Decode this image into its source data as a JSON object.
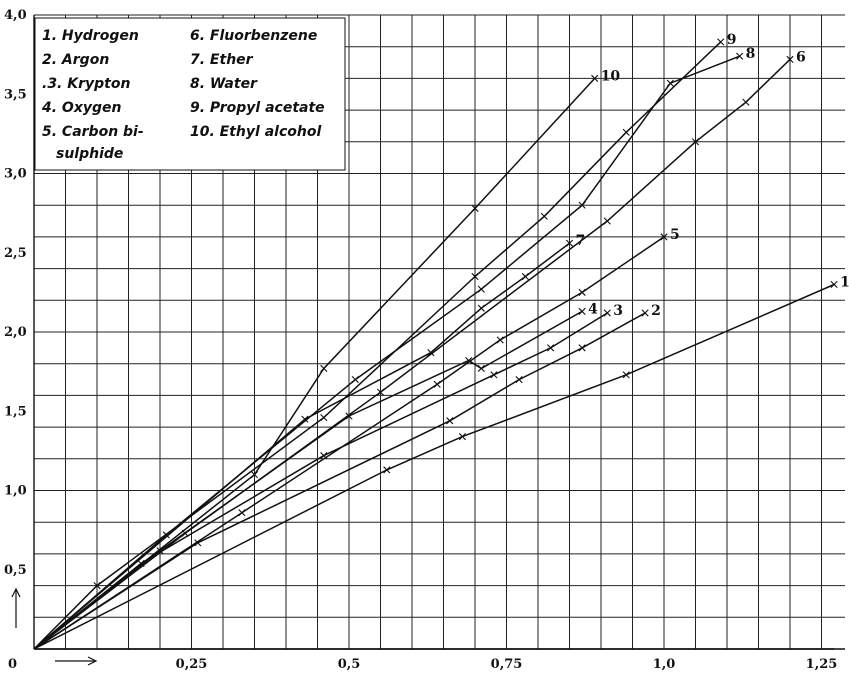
{
  "chart_data": {
    "type": "line",
    "title": "",
    "xlabel": "",
    "ylabel": "",
    "xlim": [
      0,
      1.27
    ],
    "ylim": [
      0,
      4.0
    ],
    "grid": true,
    "legend_position": "top-left",
    "origin_label": "0",
    "x_ticks": [
      {
        "value": 0.25,
        "label": "0,25"
      },
      {
        "value": 0.5,
        "label": "0,5"
      },
      {
        "value": 0.75,
        "label": "0,75"
      },
      {
        "value": 1.0,
        "label": "1,0"
      },
      {
        "value": 1.25,
        "label": "1,25"
      }
    ],
    "y_ticks": [
      {
        "value": 0.5,
        "label": "0,5"
      },
      {
        "value": 1.0,
        "label": "1,0"
      },
      {
        "value": 1.5,
        "label": "1,5"
      },
      {
        "value": 2.0,
        "label": "2,0"
      },
      {
        "value": 2.5,
        "label": "2,5"
      },
      {
        "value": 3.0,
        "label": "3,0"
      },
      {
        "value": 3.5,
        "label": "3,5"
      },
      {
        "value": 4.0,
        "label": "4,0"
      }
    ],
    "legend": [
      {
        "id": "1",
        "label": "1. Hydrogen"
      },
      {
        "id": "2",
        "label": "2. Argon"
      },
      {
        "id": "3",
        "label": ".3. Krypton"
      },
      {
        "id": "4",
        "label": "4. Oxygen"
      },
      {
        "id": "5",
        "label": "5. Carbon bi-",
        "cont": "sulphide"
      },
      {
        "id": "6",
        "label": "6. Fluorbenzene"
      },
      {
        "id": "7",
        "label": "7. Ether"
      },
      {
        "id": "8",
        "label": "8. Water"
      },
      {
        "id": "9",
        "label": "9. Propyl acetate"
      },
      {
        "id": "10",
        "label": "10. Ethyl alcohol"
      }
    ],
    "series": [
      {
        "name": "1",
        "end_label": "1",
        "points": [
          [
            0,
            0
          ],
          [
            0.56,
            1.13
          ],
          [
            0.68,
            1.34
          ],
          [
            0.94,
            1.73
          ],
          [
            1.27,
            2.3
          ]
        ]
      },
      {
        "name": "2",
        "end_label": "2",
        "points": [
          [
            0,
            0
          ],
          [
            0.26,
            0.67
          ],
          [
            0.66,
            1.44
          ],
          [
            0.77,
            1.7
          ],
          [
            0.87,
            1.9
          ],
          [
            0.97,
            2.12
          ]
        ]
      },
      {
        "name": "3",
        "end_label": "3",
        "points": [
          [
            0,
            0
          ],
          [
            0.17,
            0.54
          ],
          [
            0.46,
            1.22
          ],
          [
            0.73,
            1.73
          ],
          [
            0.82,
            1.9
          ],
          [
            0.91,
            2.12
          ]
        ]
      },
      {
        "name": "4",
        "end_label": "4",
        "points": [
          [
            0,
            0
          ],
          [
            0.2,
            0.62
          ],
          [
            0.5,
            1.47
          ],
          [
            0.69,
            1.82
          ],
          [
            0.71,
            1.77
          ],
          [
            0.87,
            2.13
          ]
        ]
      },
      {
        "name": "5",
        "end_label": "5",
        "points": [
          [
            0,
            0
          ],
          [
            0.33,
            0.86
          ],
          [
            0.64,
            1.67
          ],
          [
            0.74,
            1.95
          ],
          [
            0.87,
            2.25
          ],
          [
            1.0,
            2.6
          ]
        ]
      },
      {
        "name": "6",
        "end_label": "6",
        "points": [
          [
            0,
            0
          ],
          [
            0.24,
            0.73
          ],
          [
            0.55,
            1.62
          ],
          [
            0.91,
            2.7
          ],
          [
            1.05,
            3.2
          ],
          [
            1.13,
            3.45
          ],
          [
            1.2,
            3.72
          ]
        ]
      },
      {
        "name": "7",
        "end_label": "7",
        "points": [
          [
            0,
            0
          ],
          [
            0.43,
            1.45
          ],
          [
            0.63,
            1.87
          ],
          [
            0.71,
            2.15
          ],
          [
            0.78,
            2.35
          ],
          [
            0.85,
            2.56
          ]
        ]
      },
      {
        "name": "8",
        "end_label": "8",
        "points": [
          [
            0,
            0
          ],
          [
            0.21,
            0.72
          ],
          [
            0.51,
            1.7
          ],
          [
            0.71,
            2.27
          ],
          [
            0.87,
            2.8
          ],
          [
            1.01,
            3.57
          ],
          [
            1.12,
            3.74
          ]
        ]
      },
      {
        "name": "9",
        "end_label": "9",
        "points": [
          [
            0,
            0
          ],
          [
            0.1,
            0.4
          ],
          [
            0.46,
            1.46
          ],
          [
            0.7,
            2.35
          ],
          [
            0.81,
            2.73
          ],
          [
            0.94,
            3.26
          ],
          [
            1.09,
            3.83
          ]
        ]
      },
      {
        "name": "10",
        "end_label": "10",
        "points": [
          [
            0,
            0
          ],
          [
            0.35,
            1.1
          ],
          [
            0.46,
            1.77
          ],
          [
            0.7,
            2.78
          ],
          [
            0.89,
            3.6
          ]
        ]
      }
    ]
  }
}
